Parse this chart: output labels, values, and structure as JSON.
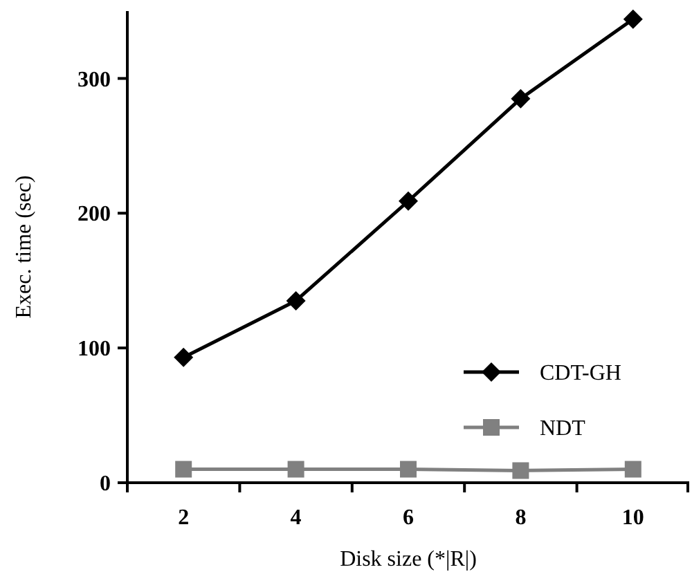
{
  "chart_data": {
    "type": "line",
    "xlabel": "Disk size (*|R|)",
    "ylabel": "Exec. time (sec)",
    "categories": [
      "2",
      "4",
      "6",
      "8",
      "10"
    ],
    "ylim": [
      0,
      350
    ],
    "yticks": [
      0,
      100,
      200,
      300
    ],
    "grid": false,
    "legend": "bottom right",
    "line_style": "solid",
    "series": [
      {
        "name": "CDT-GH",
        "color": "#000000",
        "marker": "diamond",
        "values": [
          93,
          135,
          209,
          285,
          344
        ]
      },
      {
        "name": "NDT",
        "color": "#808080",
        "marker": "square",
        "values": [
          10,
          10,
          10,
          9,
          10
        ]
      }
    ]
  }
}
